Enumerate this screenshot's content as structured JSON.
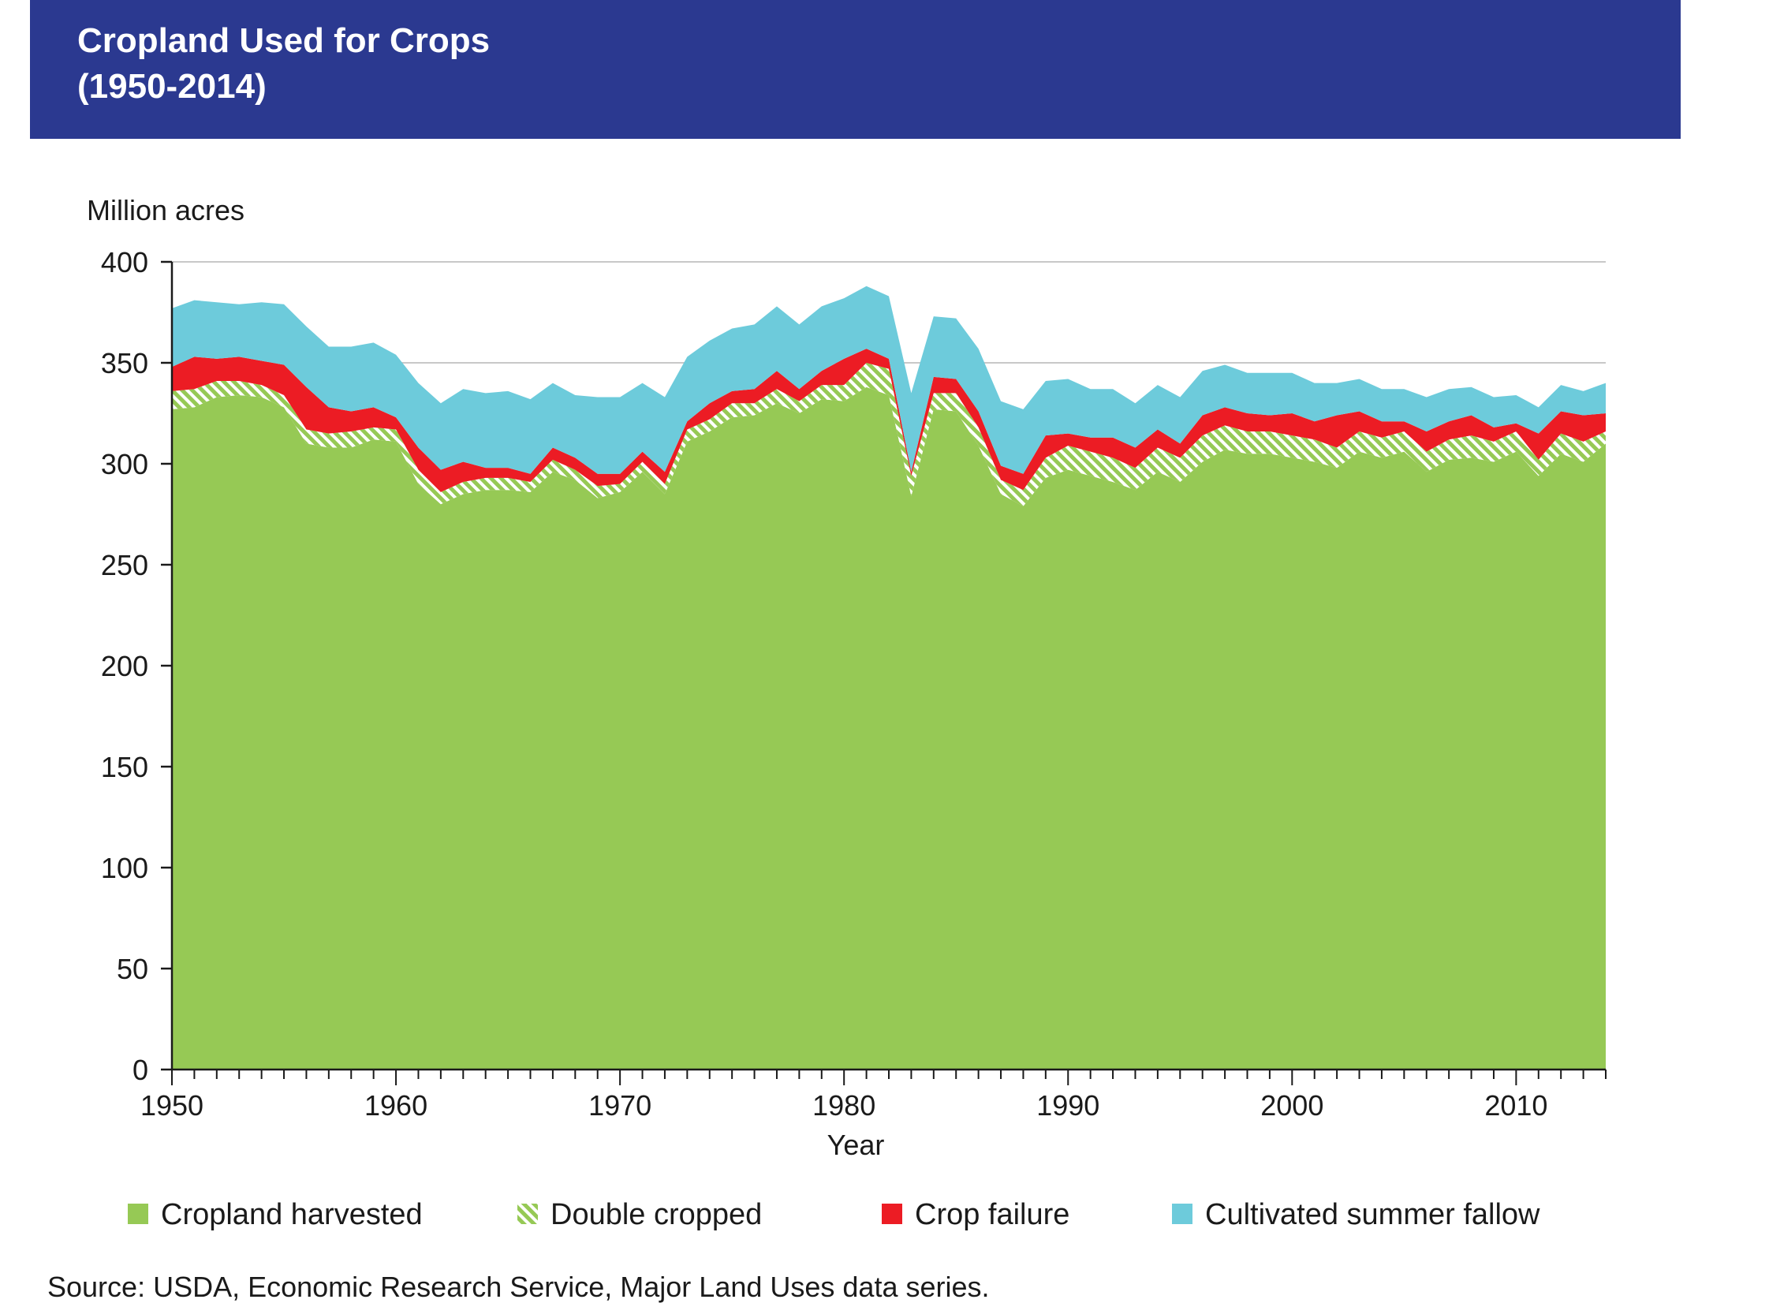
{
  "header": {
    "title_line1": "Cropland Used for Crops",
    "title_line2": "(1950-2014)"
  },
  "source": "Source: USDA, Economic Research Service, Major Land Uses data series.",
  "colors": {
    "header_bg": "#2b3990",
    "harvested": "#96c955",
    "double_cropped_stripe": "#96c955",
    "crop_failure": "#ec1c24",
    "summer_fallow": "#6dcbdb",
    "axis": "#1a1a1a",
    "gridline": "#c8c8c8"
  },
  "chart_data": {
    "type": "area",
    "stacked": true,
    "title": "Cropland Used for Crops (1950-2014)",
    "ylabel": "Million acres",
    "xlabel": "Year",
    "xlim": [
      1950,
      2014
    ],
    "ylim": [
      0,
      400
    ],
    "yticks": [
      0,
      50,
      100,
      150,
      200,
      250,
      300,
      350,
      400
    ],
    "xticks": [
      1950,
      1960,
      1970,
      1980,
      1990,
      2000,
      2010
    ],
    "grid": "horizontal",
    "legend_position": "bottom",
    "x": [
      1950,
      1951,
      1952,
      1953,
      1954,
      1955,
      1956,
      1957,
      1958,
      1959,
      1960,
      1961,
      1962,
      1963,
      1964,
      1965,
      1966,
      1967,
      1968,
      1969,
      1970,
      1971,
      1972,
      1973,
      1974,
      1975,
      1976,
      1977,
      1978,
      1979,
      1980,
      1981,
      1982,
      1983,
      1984,
      1985,
      1986,
      1987,
      1988,
      1989,
      1990,
      1991,
      1992,
      1993,
      1994,
      1995,
      1996,
      1997,
      1998,
      1999,
      2000,
      2001,
      2002,
      2003,
      2004,
      2005,
      2006,
      2007,
      2008,
      2009,
      2010,
      2011,
      2012,
      2013,
      2014
    ],
    "series": [
      {
        "name": "Cropland harvested",
        "values": [
          327,
          328,
          333,
          334,
          333,
          328,
          310,
          308,
          308,
          312,
          311,
          290,
          280,
          285,
          287,
          287,
          286,
          296,
          292,
          283,
          286,
          296,
          285,
          311,
          316,
          323,
          324,
          330,
          325,
          332,
          331,
          338,
          334,
          284,
          327,
          326,
          309,
          285,
          279,
          293,
          297,
          294,
          291,
          287,
          296,
          291,
          301,
          307,
          305,
          305,
          303,
          301,
          298,
          306,
          303,
          306,
          296,
          302,
          303,
          301,
          306,
          294,
          305,
          301,
          310
        ]
      },
      {
        "name": "Double cropped",
        "values": [
          9,
          9,
          8,
          7,
          6,
          6,
          7,
          7,
          8,
          6,
          6,
          7,
          6,
          6,
          6,
          6,
          5,
          6,
          5,
          6,
          4,
          5,
          5,
          6,
          6,
          7,
          6,
          7,
          6,
          7,
          8,
          12,
          13,
          10,
          8,
          9,
          9,
          7,
          8,
          10,
          12,
          12,
          12,
          11,
          12,
          12,
          13,
          12,
          11,
          11,
          11,
          11,
          10,
          10,
          10,
          10,
          10,
          10,
          11,
          10,
          10,
          8,
          10,
          10,
          6
        ]
      },
      {
        "name": "Crop failure",
        "values": [
          12,
          16,
          11,
          12,
          12,
          15,
          21,
          13,
          10,
          10,
          6,
          11,
          11,
          10,
          5,
          5,
          4,
          6,
          6,
          6,
          5,
          5,
          6,
          4,
          8,
          6,
          7,
          9,
          6,
          7,
          13,
          7,
          5,
          2,
          8,
          7,
          8,
          7,
          8,
          11,
          6,
          7,
          10,
          10,
          9,
          7,
          10,
          9,
          9,
          8,
          11,
          9,
          16,
          10,
          8,
          5,
          10,
          9,
          10,
          7,
          4,
          13,
          11,
          13,
          9
        ]
      },
      {
        "name": "Cultivated summer fallow",
        "values": [
          29,
          28,
          28,
          26,
          29,
          30,
          30,
          30,
          32,
          32,
          31,
          32,
          33,
          36,
          37,
          38,
          37,
          32,
          31,
          38,
          38,
          34,
          37,
          32,
          31,
          31,
          32,
          32,
          32,
          32,
          30,
          31,
          31,
          39,
          30,
          30,
          31,
          32,
          32,
          27,
          27,
          24,
          24,
          22,
          22,
          23,
          22,
          21,
          20,
          21,
          20,
          19,
          16,
          16,
          16,
          16,
          17,
          16,
          14,
          15,
          14,
          13,
          13,
          12,
          15
        ]
      }
    ]
  },
  "legend": {
    "items": [
      {
        "label": "Cropland harvested",
        "swatch": "solid-green"
      },
      {
        "label": "Double cropped",
        "swatch": "hatched-green"
      },
      {
        "label": "Crop failure",
        "swatch": "solid-red"
      },
      {
        "label": "Cultivated summer fallow",
        "swatch": "solid-blue"
      }
    ]
  }
}
